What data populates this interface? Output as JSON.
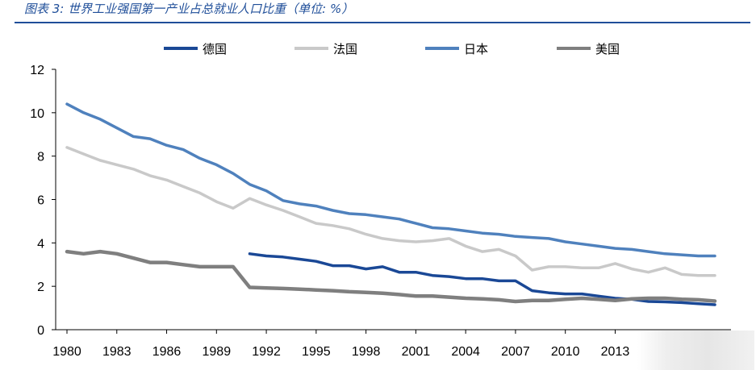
{
  "caption": "图表 3:  世界工业强国第一产业占总就业人口比重（单位: %）",
  "chart_data": {
    "type": "line",
    "title": "图表 3:  世界工业强国第一产业占总就业人口比重（单位: %）",
    "ylim": [
      0,
      12
    ],
    "yticks": [
      0,
      2,
      4,
      6,
      8,
      10,
      12
    ],
    "xlim": [
      1980,
      2019
    ],
    "xticks": [
      1980,
      1983,
      1986,
      1989,
      1992,
      1995,
      1998,
      2001,
      2004,
      2007,
      2010,
      2013
    ],
    "grid": false,
    "legend_position": "top",
    "series": [
      {
        "name": "德国",
        "color": "#1a4896",
        "width": 3.5,
        "x": [
          1991,
          1992,
          1993,
          1994,
          1995,
          1996,
          1997,
          1998,
          1999,
          2000,
          2001,
          2002,
          2003,
          2004,
          2005,
          2006,
          2007,
          2008,
          2009,
          2010,
          2011,
          2012,
          2013,
          2014,
          2015,
          2016,
          2017,
          2018,
          2019
        ],
        "y": [
          3.5,
          3.4,
          3.35,
          3.25,
          3.15,
          2.95,
          2.95,
          2.8,
          2.9,
          2.65,
          2.65,
          2.5,
          2.45,
          2.35,
          2.35,
          2.25,
          2.25,
          1.8,
          1.7,
          1.65,
          1.65,
          1.55,
          1.45,
          1.4,
          1.3,
          1.28,
          1.25,
          1.2,
          1.15
        ]
      },
      {
        "name": "法国",
        "color": "#c9c9c9",
        "width": 3.5,
        "x": [
          1980,
          1981,
          1982,
          1983,
          1984,
          1985,
          1986,
          1987,
          1988,
          1989,
          1990,
          1991,
          1992,
          1993,
          1994,
          1995,
          1996,
          1997,
          1998,
          1999,
          2000,
          2001,
          2002,
          2003,
          2004,
          2005,
          2006,
          2007,
          2008,
          2009,
          2010,
          2011,
          2012,
          2013,
          2014,
          2015,
          2016,
          2017,
          2018,
          2019
        ],
        "y": [
          8.4,
          8.1,
          7.8,
          7.6,
          7.4,
          7.1,
          6.9,
          6.6,
          6.3,
          5.9,
          5.6,
          6.05,
          5.75,
          5.5,
          5.2,
          4.9,
          4.8,
          4.65,
          4.4,
          4.2,
          4.1,
          4.05,
          4.1,
          4.2,
          3.85,
          3.6,
          3.7,
          3.4,
          2.75,
          2.9,
          2.9,
          2.85,
          2.85,
          3.05,
          2.8,
          2.65,
          2.85,
          2.55,
          2.5,
          2.5
        ]
      },
      {
        "name": "日本",
        "color": "#4f81bd",
        "width": 3.5,
        "x": [
          1980,
          1981,
          1982,
          1983,
          1984,
          1985,
          1986,
          1987,
          1988,
          1989,
          1990,
          1991,
          1992,
          1993,
          1994,
          1995,
          1996,
          1997,
          1998,
          1999,
          2000,
          2001,
          2002,
          2003,
          2004,
          2005,
          2006,
          2007,
          2008,
          2009,
          2010,
          2011,
          2012,
          2013,
          2014,
          2015,
          2016,
          2017,
          2018,
          2019
        ],
        "y": [
          10.4,
          10.0,
          9.7,
          9.3,
          8.9,
          8.8,
          8.5,
          8.3,
          7.9,
          7.6,
          7.2,
          6.7,
          6.4,
          5.95,
          5.8,
          5.7,
          5.5,
          5.35,
          5.3,
          5.2,
          5.1,
          4.9,
          4.7,
          4.65,
          4.55,
          4.45,
          4.4,
          4.3,
          4.25,
          4.2,
          4.05,
          3.95,
          3.85,
          3.75,
          3.7,
          3.6,
          3.5,
          3.45,
          3.4,
          3.4
        ]
      },
      {
        "name": "美国",
        "color": "#7f7f7f",
        "width": 4.5,
        "x": [
          1980,
          1981,
          1982,
          1983,
          1984,
          1985,
          1986,
          1987,
          1988,
          1989,
          1990,
          1991,
          1992,
          1993,
          1994,
          1995,
          1996,
          1997,
          1998,
          1999,
          2000,
          2001,
          2002,
          2003,
          2004,
          2005,
          2006,
          2007,
          2008,
          2009,
          2010,
          2011,
          2012,
          2013,
          2014,
          2015,
          2016,
          2017,
          2018,
          2019
        ],
        "y": [
          3.6,
          3.5,
          3.6,
          3.5,
          3.3,
          3.1,
          3.1,
          3.0,
          2.9,
          2.9,
          2.9,
          1.95,
          1.92,
          1.9,
          1.87,
          1.83,
          1.8,
          1.75,
          1.72,
          1.68,
          1.62,
          1.55,
          1.55,
          1.5,
          1.45,
          1.42,
          1.38,
          1.3,
          1.35,
          1.35,
          1.4,
          1.45,
          1.4,
          1.35,
          1.42,
          1.45,
          1.45,
          1.4,
          1.38,
          1.32
        ]
      }
    ]
  }
}
